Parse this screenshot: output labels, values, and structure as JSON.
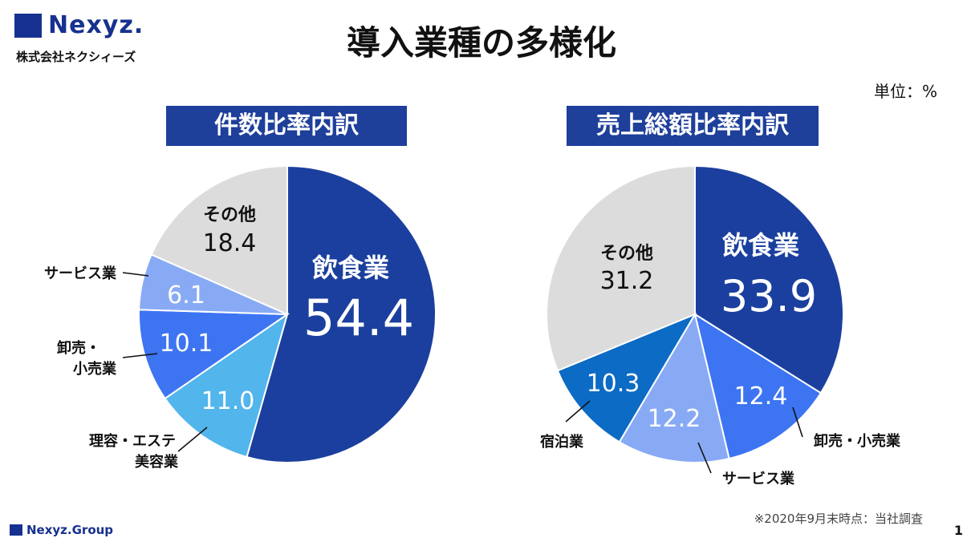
{
  "header": {
    "logo_text": "Nexyz.",
    "company": "株式会社ネクシィーズ",
    "title": "導入業種の多様化",
    "unit": "単位：%"
  },
  "footer": {
    "note": "※2020年9月末時点：当社調査",
    "group": "Nexyz.Group",
    "page": "1"
  },
  "colors": {
    "brand": "#16318f",
    "title_bar": "#1e3f9a"
  },
  "chart_data": [
    {
      "type": "pie",
      "title": "件数比率内訳",
      "slices": [
        {
          "label": "飲食業",
          "value": 54.4,
          "value_label": "54.4",
          "color": "#1b3f9e"
        },
        {
          "label": "理容・エステ美容業",
          "value": 11.0,
          "value_label": "11.0",
          "color": "#52b5ec"
        },
        {
          "label": "卸売・小売業",
          "value": 10.1,
          "value_label": "10.1",
          "color": "#3d74f2"
        },
        {
          "label": "サービス業",
          "value": 6.1,
          "value_label": "6.1",
          "color": "#88aaf5"
        },
        {
          "label": "その他",
          "value": 18.4,
          "value_label": "18.4",
          "color": "#dcdcdc"
        }
      ]
    },
    {
      "type": "pie",
      "title": "売上総額比率内訳",
      "slices": [
        {
          "label": "飲食業",
          "value": 33.9,
          "value_label": "33.9",
          "color": "#1b3f9e"
        },
        {
          "label": "卸売・小売業",
          "value": 12.4,
          "value_label": "12.4",
          "color": "#3d74f2"
        },
        {
          "label": "サービス業",
          "value": 12.2,
          "value_label": "12.2",
          "color": "#88aaf5"
        },
        {
          "label": "宿泊業",
          "value": 10.3,
          "value_label": "10.3",
          "color": "#0c6bc4"
        },
        {
          "label": "その他",
          "value": 31.2,
          "value_label": "31.2",
          "color": "#dcdcdc"
        }
      ]
    }
  ]
}
